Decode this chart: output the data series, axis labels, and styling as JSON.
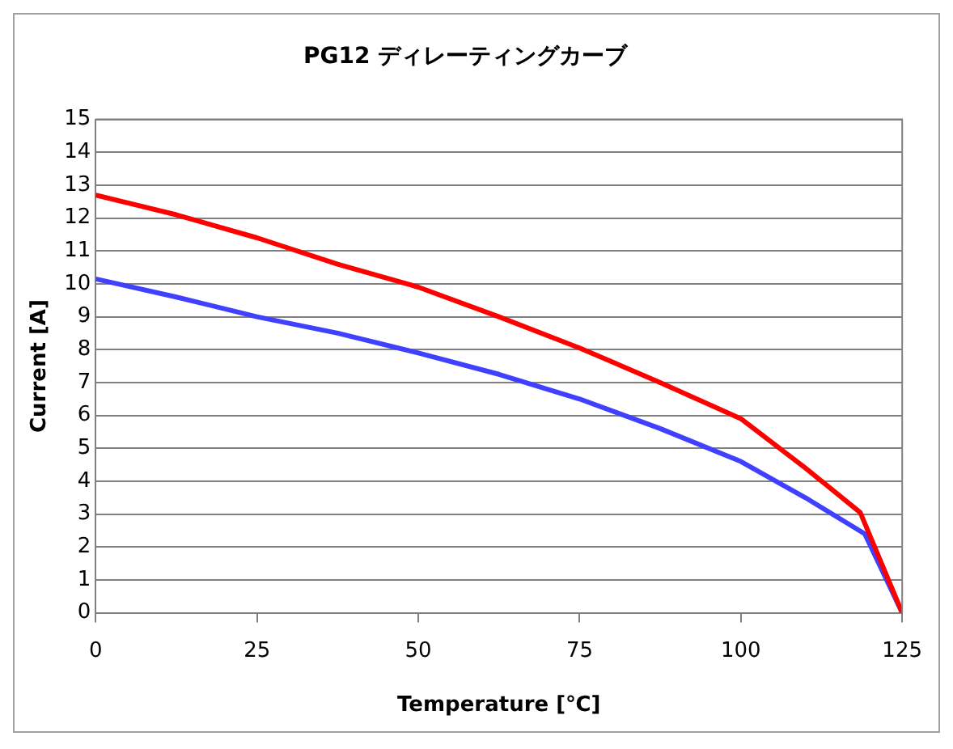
{
  "chart_data": {
    "type": "line",
    "title": "PG12 ディレーティングカーブ",
    "xlabel": "Temperature [℃]",
    "ylabel": "Current [A]",
    "x": [
      0,
      12.5,
      25,
      37.5,
      50,
      62.5,
      75,
      87.5,
      100,
      110,
      118.5,
      125
    ],
    "series": [
      {
        "color": "#ff0000",
        "values": [
          12.7,
          12.1,
          11.4,
          10.6,
          9.9,
          9.0,
          8.05,
          7.0,
          5.9,
          4.4,
          3.05,
          0
        ]
      },
      {
        "color": "#4040ff",
        "x": [
          0,
          12.5,
          25,
          37.5,
          50,
          62.5,
          75,
          87.5,
          100,
          110,
          119.2,
          125
        ],
        "values": [
          10.15,
          9.6,
          9.0,
          8.5,
          7.9,
          7.25,
          6.5,
          5.6,
          4.6,
          3.5,
          2.4,
          0
        ]
      }
    ],
    "xlim": [
      0,
      125
    ],
    "xticks": [
      0,
      25,
      50,
      75,
      100,
      125
    ],
    "ylim": [
      0,
      15
    ],
    "yticks": [
      0,
      1,
      2,
      3,
      4,
      5,
      6,
      7,
      8,
      9,
      10,
      11,
      12,
      13,
      14,
      15
    ],
    "grid": "y",
    "legend": false,
    "marker": "none",
    "line_style": "solid"
  }
}
